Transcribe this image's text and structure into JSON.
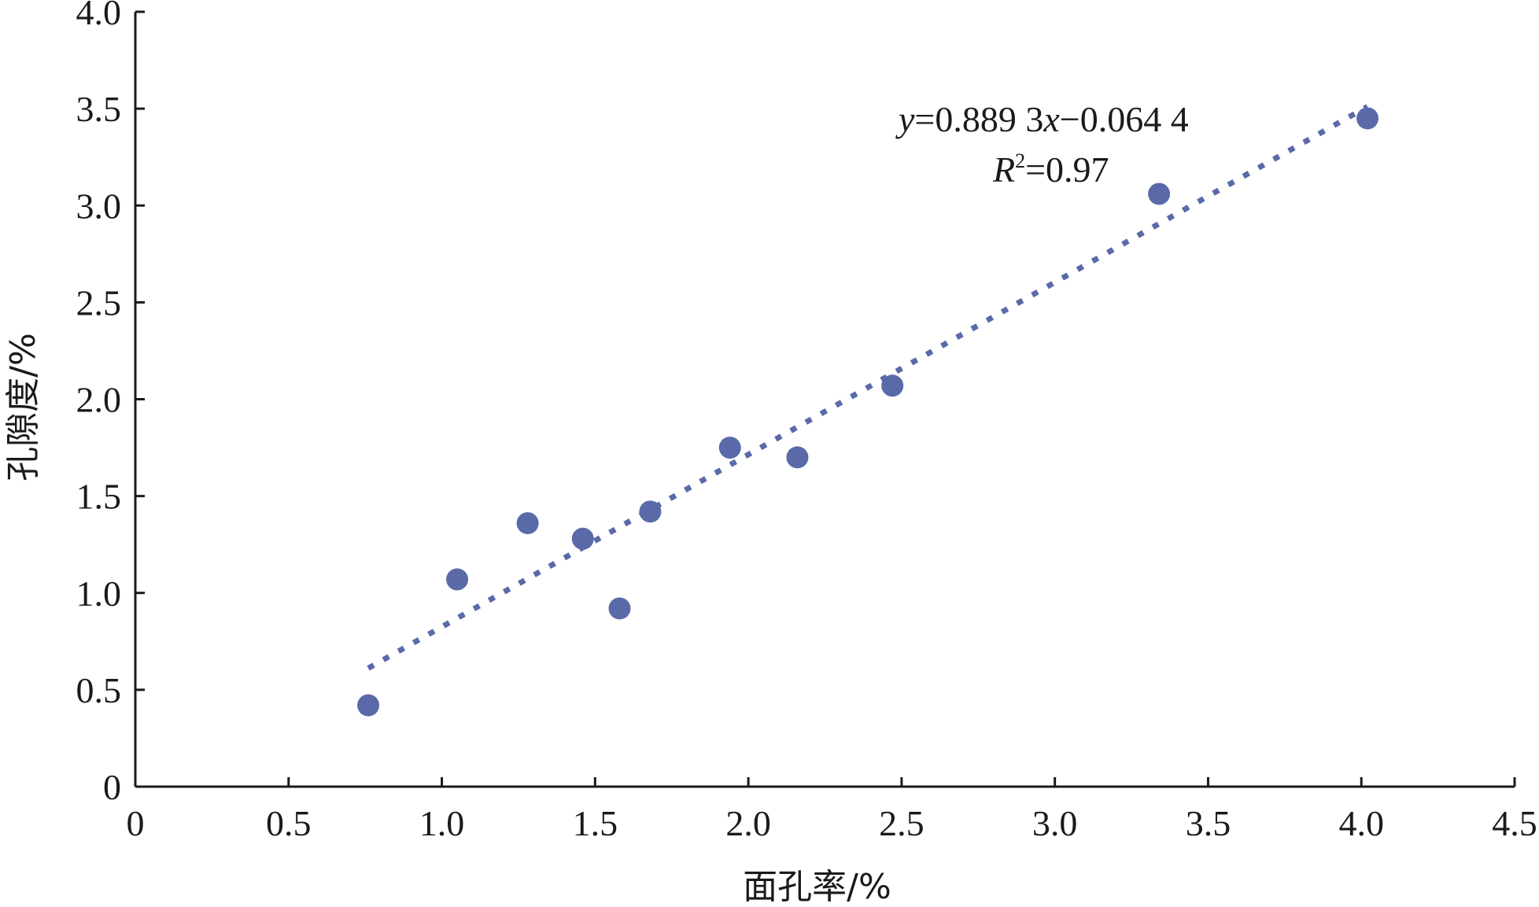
{
  "chart_data": {
    "type": "scatter",
    "title": "",
    "xlabel": "面孔率/%",
    "ylabel": "孔隙度/%",
    "xlim": [
      0,
      4.5
    ],
    "ylim": [
      0,
      4.0
    ],
    "x_ticks": [
      "0",
      "0.5",
      "1.0",
      "1.5",
      "2.0",
      "2.5",
      "3.0",
      "3.5",
      "4.0",
      "4.5"
    ],
    "y_ticks": [
      "0",
      "0.5",
      "1.0",
      "1.5",
      "2.0",
      "2.5",
      "3.0",
      "3.5",
      "4.0"
    ],
    "grid": false,
    "series": [
      {
        "points": [
          {
            "x": 0.76,
            "y": 0.42
          },
          {
            "x": 1.05,
            "y": 1.07
          },
          {
            "x": 1.28,
            "y": 1.36
          },
          {
            "x": 1.46,
            "y": 1.28
          },
          {
            "x": 1.58,
            "y": 0.92
          },
          {
            "x": 1.68,
            "y": 1.42
          },
          {
            "x": 1.94,
            "y": 1.75
          },
          {
            "x": 2.16,
            "y": 1.7
          },
          {
            "x": 2.47,
            "y": 2.07
          },
          {
            "x": 3.34,
            "y": 3.06
          },
          {
            "x": 4.02,
            "y": 3.45
          }
        ],
        "color": "#5a6aa8"
      }
    ],
    "trendline": {
      "type": "linear",
      "slope": 0.8893,
      "intercept": -0.0644,
      "x_range": [
        0.76,
        4.02
      ],
      "style": "dotted",
      "color": "#5a6aa8"
    },
    "annotations": {
      "equation": {
        "prefix": "y",
        "rest": "=0.889 3",
        "x_var": "x",
        "tail": "−0.064 4"
      },
      "r2": {
        "var": "R",
        "sup": "2",
        "tail": "=0.97"
      }
    }
  }
}
